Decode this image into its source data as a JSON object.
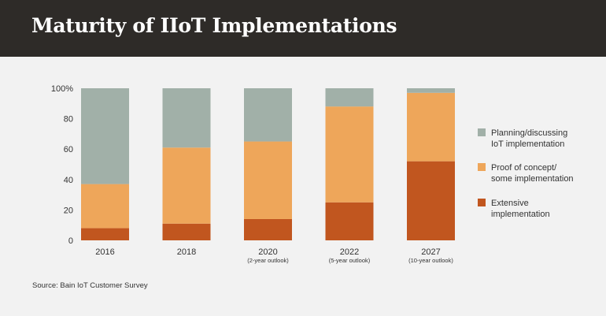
{
  "header": {
    "title": "Maturity of IIoT Implementations"
  },
  "source": "Source: Bain IoT Customer Survey",
  "colors": {
    "header_bg": "#2e2b28",
    "planning": "#a1b0a8",
    "proof": "#eea65a",
    "extensive": "#c1561f",
    "background": "#f2f2f2"
  },
  "chart_data": {
    "type": "bar",
    "stacked": true,
    "title": "Maturity of IIoT Implementations",
    "xlabel": "",
    "ylabel": "",
    "ylim": [
      0,
      100
    ],
    "yticks": [
      "0",
      "20",
      "40",
      "60",
      "80",
      "100%"
    ],
    "categories": [
      "2016",
      "2018",
      "2020",
      "2022",
      "2027"
    ],
    "sublabels": [
      "",
      "",
      "(2-year outlook)",
      "(5-year outlook)",
      "(10-year outlook)"
    ],
    "series": [
      {
        "name": "Extensive implementation",
        "legend_lines": [
          "Extensive",
          "implementation"
        ],
        "color_key": "extensive",
        "values": [
          8,
          11,
          14,
          25,
          52
        ]
      },
      {
        "name": "Proof of concept/ some implementation",
        "legend_lines": [
          "Proof of concept/",
          "some implementation"
        ],
        "color_key": "proof",
        "values": [
          29,
          50,
          51,
          63,
          45
        ]
      },
      {
        "name": "Planning/discussing IoT implementation",
        "legend_lines": [
          "Planning/discussing",
          "IoT implementation"
        ],
        "color_key": "planning",
        "values": [
          63,
          39,
          35,
          12,
          3
        ]
      }
    ],
    "legend_order": [
      2,
      1,
      0
    ],
    "legend_position": "right"
  }
}
